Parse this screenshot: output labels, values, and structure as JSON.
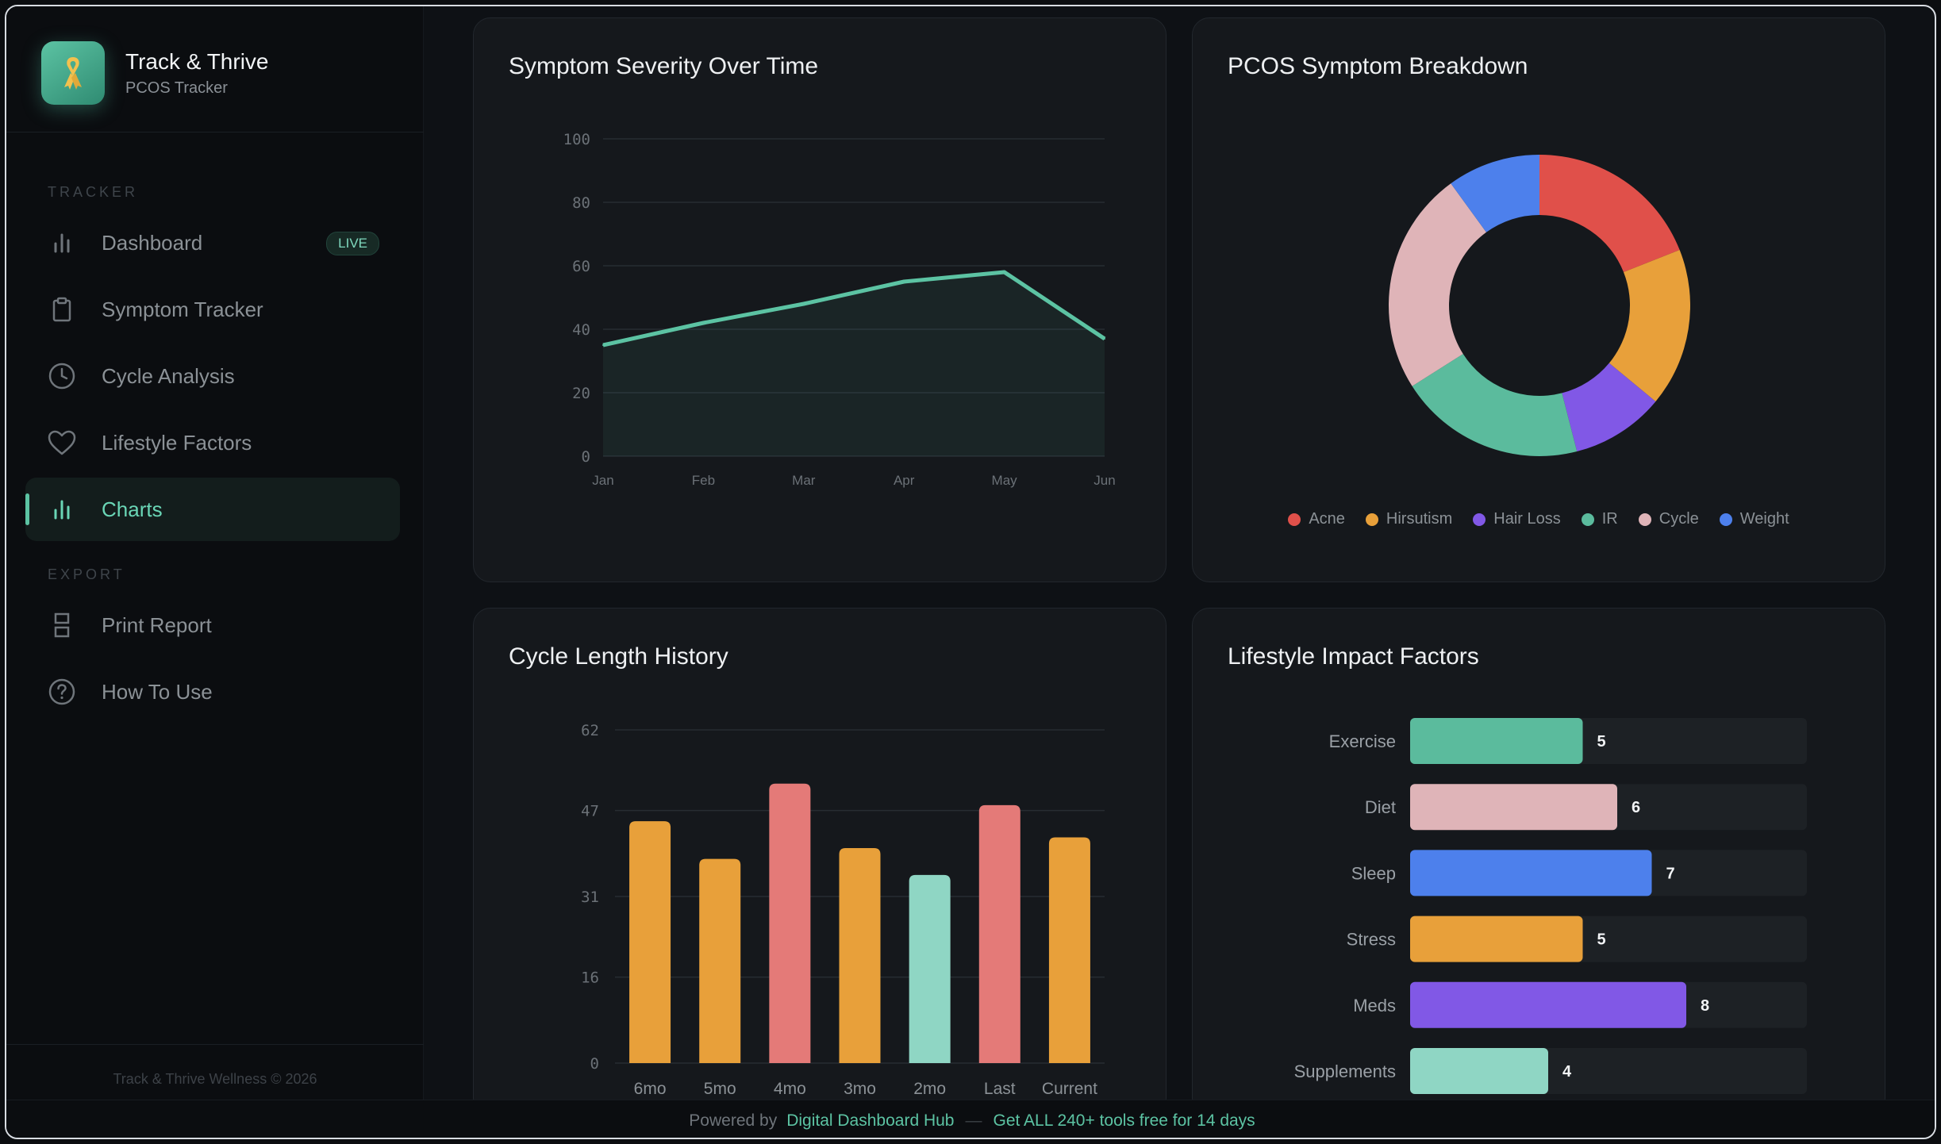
{
  "brand": {
    "title": "Track & Thrive",
    "subtitle": "PCOS Tracker"
  },
  "sidebar": {
    "sections": [
      {
        "label": "TRACKER"
      },
      {
        "label": "EXPORT"
      }
    ],
    "items": [
      {
        "label": "Dashboard",
        "icon": "bar-chart-icon",
        "badge": "LIVE"
      },
      {
        "label": "Symptom Tracker",
        "icon": "clipboard-icon"
      },
      {
        "label": "Cycle Analysis",
        "icon": "clock-icon"
      },
      {
        "label": "Lifestyle Factors",
        "icon": "heart-icon"
      },
      {
        "label": "Charts",
        "icon": "bar-chart-icon",
        "active": true
      },
      {
        "label": "Print Report",
        "icon": "printer-icon"
      },
      {
        "label": "How To Use",
        "icon": "help-circle-icon"
      }
    ],
    "footer": "Track & Thrive Wellness © 2026"
  },
  "bottombar": {
    "powered_by": "Powered by",
    "brand_link": "Digital Dashboard Hub",
    "separator": "—",
    "promo": "Get ALL 240+ tools free for 14 days"
  },
  "colors": {
    "accent": "#5cc3a3",
    "red": "#e0504a",
    "orange": "#e8a03a",
    "purple": "#8158e6",
    "teal": "#5bbb9d",
    "pink": "#dfb4b8",
    "blue": "#4d80ec",
    "mint": "#8fd6c4",
    "salmon": "#e47a78"
  },
  "chart_data": [
    {
      "type": "area",
      "title": "Symptom Severity Over Time",
      "x": [
        "Jan",
        "Feb",
        "Mar",
        "Apr",
        "May",
        "Jun"
      ],
      "series": [
        {
          "values": [
            35,
            42,
            48,
            55,
            58,
            37
          ]
        }
      ],
      "ylim": [
        0,
        100
      ],
      "yticks": [
        0,
        20,
        40,
        60,
        80,
        100
      ],
      "grid": true
    },
    {
      "type": "pie",
      "title": "PCOS Symptom Breakdown",
      "donut": true,
      "categories": [
        "Acne",
        "Hirsutism",
        "Hair Loss",
        "IR",
        "Cycle",
        "Weight"
      ],
      "values": [
        19,
        17,
        10,
        20,
        24,
        10
      ],
      "colors": [
        "#e0504a",
        "#e8a03a",
        "#8158e6",
        "#5bbb9d",
        "#dfb4b8",
        "#4d80ec"
      ],
      "legend": "bottom"
    },
    {
      "type": "bar",
      "title": "Cycle Length History",
      "categories": [
        "6mo",
        "5mo",
        "4mo",
        "3mo",
        "2mo",
        "Last",
        "Current"
      ],
      "values": [
        45,
        38,
        52,
        40,
        35,
        48,
        42
      ],
      "colors": [
        "#e8a03a",
        "#e8a03a",
        "#e47a78",
        "#e8a03a",
        "#8fd6c4",
        "#e47a78",
        "#e8a03a"
      ],
      "ylim": [
        0,
        62
      ],
      "yticks": [
        0,
        16,
        31,
        47,
        62
      ],
      "grid": true
    },
    {
      "type": "bar",
      "orientation": "horizontal",
      "title": "Lifestyle Impact Factors",
      "categories": [
        "Exercise",
        "Diet",
        "Sleep",
        "Stress",
        "Meds",
        "Supplements"
      ],
      "values": [
        5,
        6,
        7,
        5,
        8,
        4
      ],
      "colors": [
        "#5bbb9d",
        "#dfb4b8",
        "#4d80ec",
        "#e8a03a",
        "#8158e6",
        "#8fd6c4"
      ],
      "xlim": [
        0,
        10
      ],
      "data_labels": true
    }
  ]
}
